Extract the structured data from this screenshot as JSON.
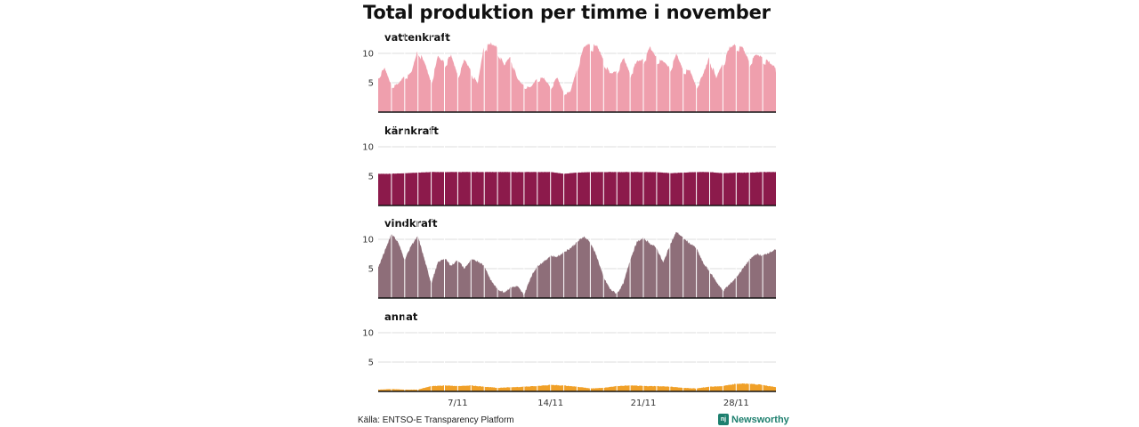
{
  "title": "Total produktion per timme i november",
  "source": "Källa: ENTSO-E Transparency Platform",
  "brand": "Newsworthy",
  "chart_data": {
    "type": "area",
    "x_unit": "day of November (hourly resolution)",
    "xlim": [
      1,
      31
    ],
    "ylim": [
      0,
      12
    ],
    "y_ticks": [
      5,
      10
    ],
    "x_ticks": [
      {
        "value": 7,
        "label": "7/11"
      },
      {
        "value": 14,
        "label": "14/11"
      },
      {
        "value": 21,
        "label": "21/11"
      },
      {
        "value": 28,
        "label": "28/11"
      }
    ],
    "grid": true,
    "series": [
      {
        "name": "vattenkraft",
        "color": "#ef9fad",
        "day": [
          1,
          1.5,
          2,
          2.5,
          3,
          3.5,
          4,
          4.5,
          5,
          5.5,
          6,
          6.5,
          7,
          7.5,
          8,
          8.5,
          9,
          9.5,
          10,
          10.5,
          11,
          11.5,
          12,
          12.5,
          13,
          13.5,
          14,
          14.5,
          15,
          15.5,
          16,
          16.5,
          17,
          17.5,
          18,
          18.5,
          19,
          19.5,
          20,
          20.5,
          21,
          21.5,
          22,
          22.5,
          23,
          23.5,
          24,
          24.5,
          25,
          25.5,
          26,
          26.5,
          27,
          27.5,
          28,
          28.5,
          29,
          29.5,
          30,
          30.5,
          31
        ],
        "values": [
          6.3,
          7.5,
          4.5,
          4.8,
          6.2,
          6.7,
          10.8,
          8.5,
          5,
          9.5,
          8.5,
          9.8,
          6.2,
          9,
          7,
          4.8,
          11.5,
          11.7,
          11,
          8,
          9.7,
          5.6,
          4.5,
          4.2,
          5.8,
          5.8,
          4.2,
          6,
          3.2,
          3.5,
          7.5,
          11.2,
          11.6,
          11.3,
          9,
          6.5,
          7,
          9.3,
          6.5,
          8.7,
          9,
          11,
          9.3,
          8.6,
          7.5,
          10,
          7.2,
          7.2,
          4.2,
          6.4,
          9.5,
          5.8,
          8.5,
          11,
          11.6,
          10.9,
          8.6,
          9.8,
          9.3,
          8.5,
          7.5
        ]
      },
      {
        "name": "kärnkraft",
        "color": "#8c1a4b",
        "day": [
          1,
          2,
          3,
          4,
          5,
          6,
          7,
          8,
          9,
          10,
          11,
          12,
          13,
          14,
          15,
          16,
          17,
          18,
          19,
          20,
          21,
          22,
          23,
          24,
          25,
          26,
          27,
          28,
          29,
          30,
          31
        ],
        "values": [
          5.4,
          5.4,
          5.5,
          5.6,
          5.7,
          5.7,
          5.7,
          5.7,
          5.7,
          5.7,
          5.7,
          5.7,
          5.7,
          5.7,
          5.4,
          5.6,
          5.7,
          5.7,
          5.7,
          5.7,
          5.7,
          5.7,
          5.5,
          5.6,
          5.7,
          5.7,
          5.5,
          5.6,
          5.6,
          5.7,
          5.7
        ]
      },
      {
        "name": "vindkraft",
        "color": "#8e6e79",
        "day": [
          1,
          1.5,
          2,
          2.5,
          3,
          3.5,
          4,
          4.5,
          5,
          5.5,
          6,
          6.5,
          7,
          7.5,
          8,
          8.5,
          9,
          9.5,
          10,
          10.5,
          11,
          11.5,
          12,
          12.5,
          13,
          13.5,
          14,
          14.5,
          15,
          15.5,
          16,
          16.5,
          17,
          17.5,
          18,
          18.5,
          19,
          19.5,
          20,
          20.5,
          21,
          21.5,
          22,
          22.5,
          23,
          23.5,
          24,
          24.5,
          25,
          25.5,
          26,
          26.5,
          27,
          27.5,
          28,
          28.5,
          29,
          29.5,
          30,
          30.5,
          31
        ],
        "values": [
          5.2,
          8,
          11,
          9.5,
          6.5,
          9,
          10.5,
          6.5,
          2.5,
          6,
          6.8,
          5.5,
          6.5,
          5,
          6.5,
          6.3,
          5.5,
          3,
          1.5,
          1,
          1.8,
          2,
          0.5,
          3.5,
          5.5,
          6.2,
          7.2,
          7,
          7.8,
          8.5,
          9.5,
          10.5,
          9.5,
          7,
          3.5,
          1.5,
          0.7,
          2.5,
          6.5,
          9.5,
          10.2,
          9.3,
          8.5,
          6,
          9,
          11.3,
          10.2,
          9.3,
          8.5,
          6,
          4.5,
          2.8,
          1.2,
          2.3,
          3.5,
          5,
          6.5,
          7.5,
          7.2,
          7.8,
          8.2
        ]
      },
      {
        "name": "annat",
        "color": "#f0a028",
        "day": [
          1,
          2,
          3,
          4,
          5,
          6,
          7,
          8,
          9,
          10,
          11,
          12,
          13,
          14,
          15,
          16,
          17,
          18,
          19,
          20,
          21,
          22,
          23,
          24,
          25,
          26,
          27,
          28,
          29,
          30,
          31
        ],
        "values": [
          0.3,
          0.4,
          0.3,
          0.3,
          0.9,
          1.0,
          0.9,
          1.0,
          0.8,
          0.6,
          0.7,
          0.8,
          0.9,
          1.1,
          1.0,
          0.8,
          0.5,
          0.6,
          0.9,
          1.0,
          0.9,
          0.9,
          0.8,
          0.6,
          0.5,
          0.8,
          0.9,
          1.3,
          1.3,
          1.1,
          0.7
        ]
      }
    ]
  }
}
